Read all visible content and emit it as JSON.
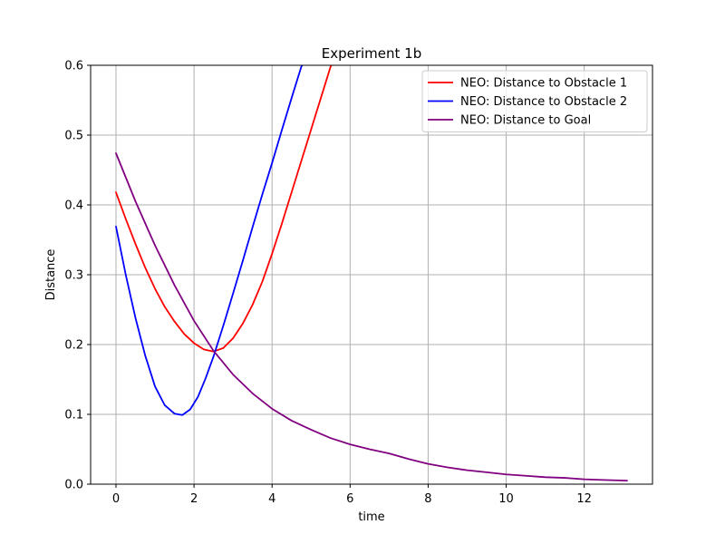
{
  "chart_data": {
    "type": "line",
    "title": "Experiment 1b",
    "xlabel": "time",
    "ylabel": "Distance",
    "xlim": [
      -0.65,
      13.75
    ],
    "ylim": [
      0,
      0.6
    ],
    "xticks": [
      0,
      2,
      4,
      6,
      8,
      10,
      12
    ],
    "yticks": [
      0.0,
      0.1,
      0.2,
      0.3,
      0.4,
      0.5,
      0.6
    ],
    "grid": true,
    "legend_position": "top-right",
    "series": [
      {
        "name": "NEO: Distance to Obstacle 1",
        "color": "#ff0000",
        "x": [
          0,
          0.25,
          0.5,
          0.75,
          1.0,
          1.25,
          1.5,
          1.75,
          2.0,
          2.25,
          2.5,
          2.75,
          3.0,
          3.25,
          3.5,
          3.75,
          4.0,
          4.25,
          4.5,
          4.75,
          5.0,
          5.25,
          5.5,
          5.7
        ],
        "y": [
          0.418,
          0.38,
          0.344,
          0.31,
          0.28,
          0.254,
          0.233,
          0.215,
          0.202,
          0.193,
          0.19,
          0.195,
          0.209,
          0.23,
          0.257,
          0.29,
          0.33,
          0.373,
          0.418,
          0.463,
          0.508,
          0.553,
          0.598,
          0.615
        ]
      },
      {
        "name": "NEO: Distance to Obstacle 2",
        "color": "#0000ff",
        "x": [
          0,
          0.25,
          0.5,
          0.75,
          1.0,
          1.25,
          1.5,
          1.7,
          1.9,
          2.1,
          2.3,
          2.5,
          2.75,
          3.0,
          3.25,
          3.5,
          3.75,
          4.0,
          4.25,
          4.5,
          4.75,
          4.9
        ],
        "y": [
          0.369,
          0.3,
          0.238,
          0.184,
          0.14,
          0.113,
          0.101,
          0.099,
          0.107,
          0.125,
          0.152,
          0.183,
          0.227,
          0.273,
          0.32,
          0.368,
          0.415,
          0.46,
          0.507,
          0.553,
          0.598,
          0.612
        ]
      },
      {
        "name": "NEO: Distance to Goal",
        "color": "#800080",
        "x": [
          0,
          0.5,
          1.0,
          1.5,
          2.0,
          2.5,
          3.0,
          3.5,
          4.0,
          4.5,
          5.0,
          5.5,
          6.0,
          6.5,
          7.0,
          7.5,
          8.0,
          8.5,
          9.0,
          9.5,
          10.0,
          10.5,
          11.0,
          11.5,
          12.0,
          12.5,
          13.1
        ],
        "y": [
          0.474,
          0.405,
          0.342,
          0.285,
          0.234,
          0.191,
          0.157,
          0.13,
          0.108,
          0.091,
          0.078,
          0.066,
          0.057,
          0.05,
          0.044,
          0.036,
          0.029,
          0.024,
          0.02,
          0.017,
          0.014,
          0.012,
          0.01,
          0.009,
          0.007,
          0.006,
          0.005
        ]
      }
    ]
  }
}
